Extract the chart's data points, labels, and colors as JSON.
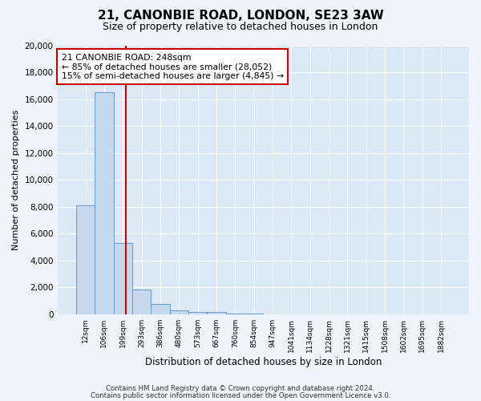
{
  "title": "21, CANONBIE ROAD, LONDON, SE23 3AW",
  "subtitle": "Size of property relative to detached houses in London",
  "xlabel": "Distribution of detached houses by size in London",
  "ylabel": "Number of detached properties",
  "bar_values": [
    8100,
    16500,
    5300,
    1850,
    800,
    300,
    200,
    150,
    50,
    30,
    15,
    10,
    5,
    3,
    2,
    1,
    1,
    1,
    1,
    1
  ],
  "bar_labels": [
    "12sqm",
    "106sqm",
    "199sqm",
    "293sqm",
    "386sqm",
    "480sqm",
    "573sqm",
    "667sqm",
    "760sqm",
    "854sqm",
    "947sqm",
    "1041sqm",
    "1134sqm",
    "1228sqm",
    "1321sqm",
    "1415sqm",
    "1508sqm",
    "1602sqm",
    "1695sqm",
    "1882sqm"
  ],
  "bar_color": "#c5d8ed",
  "bar_edge_color": "#6699cc",
  "vline_x": 2.18,
  "vline_color": "#cc0000",
  "annotation_title": "21 CANONBIE ROAD: 248sqm",
  "annotation_line1": "← 85% of detached houses are smaller (28,052)",
  "annotation_line2": "15% of semi-detached houses are larger (4,845) →",
  "annotation_box_facecolor": "#ffffff",
  "annotation_box_edge": "#cc0000",
  "ylim": [
    0,
    20000
  ],
  "yticks": [
    0,
    2000,
    4000,
    6000,
    8000,
    10000,
    12000,
    14000,
    16000,
    18000,
    20000
  ],
  "footer_line1": "Contains HM Land Registry data © Crown copyright and database right 2024.",
  "footer_line2": "Contains public sector information licensed under the Open Government Licence v3.0.",
  "fig_facecolor": "#f0f4fa",
  "plot_facecolor": "#dce8f5",
  "n_bars": 20
}
